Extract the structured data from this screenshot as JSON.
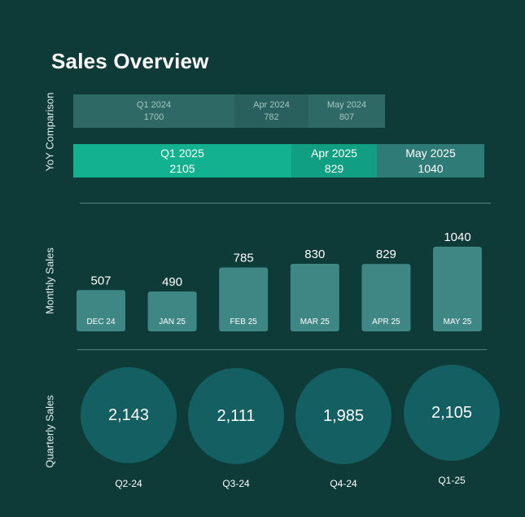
{
  "title": "Sales Overview",
  "colors": {
    "background": "#0e3a37",
    "yoy_2024": "#2e6965",
    "yoy_2024_alt": "#295f5c",
    "yoy_2025_q1": "#12b291",
    "yoy_2025_apr": "#109f83",
    "yoy_2025_may": "#2f7b77",
    "bar": "#3f8785",
    "circle": "#135f61"
  },
  "chart_data": [
    {
      "type": "bar",
      "orientation": "horizontal-stacked",
      "ylabel": "YoY Comparison",
      "categories": [
        "Q1",
        "Apr",
        "May"
      ],
      "series": [
        {
          "name": "2024",
          "labels": [
            "Q1 2024",
            "Apr 2024",
            "May 2024"
          ],
          "values": [
            1700,
            782,
            807
          ]
        },
        {
          "name": "2025",
          "labels": [
            "Q1 2025",
            "Apr 2025",
            "May 2025"
          ],
          "values": [
            2105,
            829,
            1040
          ]
        }
      ]
    },
    {
      "type": "bar",
      "ylabel": "Monthly Sales",
      "categories": [
        "DEC 24",
        "JAN 25",
        "FEB 25",
        "MAR 25",
        "APR 25",
        "MAY 25"
      ],
      "values": [
        507,
        490,
        785,
        830,
        829,
        1040
      ]
    },
    {
      "type": "bubble",
      "ylabel": "Quarterly Sales",
      "categories": [
        "Q2-24",
        "Q3-24",
        "Q4-24",
        "Q1-25"
      ],
      "values": [
        2143,
        2111,
        1985,
        2105
      ],
      "value_labels": [
        "2,143",
        "2,111",
        "1,985",
        "2,105"
      ]
    }
  ]
}
